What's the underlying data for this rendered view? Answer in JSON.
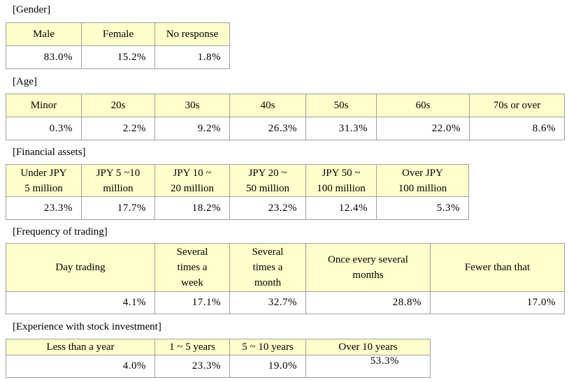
{
  "gender": {
    "title": "[Gender]",
    "headers": [
      "Male",
      "Female",
      "No response"
    ],
    "values": [
      "83.0%",
      "15.2%",
      "1.8%"
    ]
  },
  "age": {
    "title": "[Age]",
    "headers": [
      "Minor",
      "20s",
      "30s",
      "40s",
      "50s",
      "60s",
      "70s or over"
    ],
    "values": [
      "0.3%",
      "2.2%",
      "9.2%",
      "26.3%",
      "31.3%",
      "22.0%",
      "8.6%"
    ]
  },
  "assets": {
    "title": "[Financial assets]",
    "headers": [
      [
        "Under JPY",
        "5 million"
      ],
      [
        "JPY 5 ~10",
        "million"
      ],
      [
        "JPY 10 ~",
        "20 million"
      ],
      [
        "JPY 20 ~",
        "50 million"
      ],
      [
        "JPY 50 ~",
        "100 million"
      ],
      [
        "Over JPY",
        "100 million"
      ]
    ],
    "values": [
      "23.3%",
      "17.7%",
      "18.2%",
      "23.2%",
      "12.4%",
      "5.3%"
    ]
  },
  "frequency": {
    "title": "[Frequency of trading]",
    "headers": [
      [
        "Day trading"
      ],
      [
        "Several",
        "times a",
        "week"
      ],
      [
        "Several",
        "times a",
        "month"
      ],
      [
        "Once every several",
        "months"
      ],
      [
        "Fewer than that"
      ]
    ],
    "values": [
      "4.1%",
      "17.1%",
      "32.7%",
      "28.8%",
      "17.0%"
    ]
  },
  "experience": {
    "title": "[Experience with stock investment]",
    "headers": [
      "Less than a year",
      "1 ~ 5 years",
      "5 ~ 10 years",
      "Over 10 years"
    ],
    "values": [
      "4.0%",
      "23.3%",
      "19.0%",
      "53.3%"
    ]
  }
}
